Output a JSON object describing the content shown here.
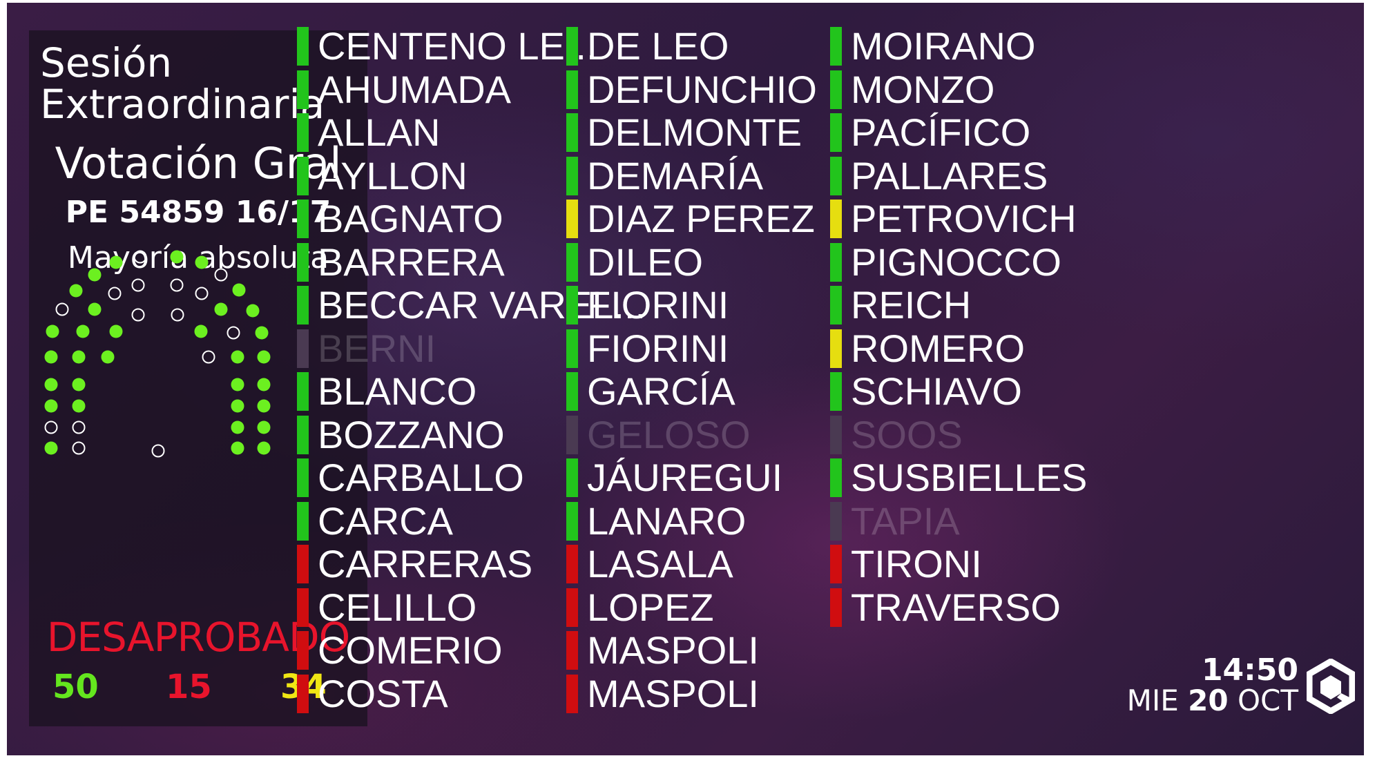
{
  "panel": {
    "session_line1": "Sesión",
    "session_line2": "Extraordinaria",
    "vote_type": "Votación Gral",
    "file": "PE 54859 16/17",
    "majority": "Mayoría absoluta",
    "result": "DESAPROBADO",
    "result_color": "#e8142c",
    "tally": {
      "yes": "50",
      "no": "15",
      "abstain": "34"
    }
  },
  "status_colors": {
    "yes": "#22c41c",
    "no": "#d00d10",
    "abstain": "#e6de10",
    "absent": "#4a3a52"
  },
  "hemicycle_seat_color": {
    "voted": "#6cf020",
    "empty": "#ffffff"
  },
  "columns": [
    [
      {
        "name": "CENTENO LE...",
        "vote": "yes"
      },
      {
        "name": "AHUMADA",
        "vote": "yes"
      },
      {
        "name": "ALLAN",
        "vote": "yes"
      },
      {
        "name": "AYLLON",
        "vote": "yes"
      },
      {
        "name": "BAGNATO",
        "vote": "yes"
      },
      {
        "name": "BARRERA",
        "vote": "yes"
      },
      {
        "name": "BECCAR VAREL...",
        "vote": "yes"
      },
      {
        "name": "BERNI",
        "vote": "absent"
      },
      {
        "name": "BLANCO",
        "vote": "yes"
      },
      {
        "name": "BOZZANO",
        "vote": "yes"
      },
      {
        "name": "CARBALLO",
        "vote": "yes"
      },
      {
        "name": "CARCA",
        "vote": "yes"
      },
      {
        "name": "CARRERAS",
        "vote": "no"
      },
      {
        "name": "CELILLO",
        "vote": "no"
      },
      {
        "name": "COMERIO",
        "vote": "no"
      },
      {
        "name": "COSTA",
        "vote": "no"
      }
    ],
    [
      {
        "name": "DE LEO",
        "vote": "yes"
      },
      {
        "name": "DEFUNCHIO",
        "vote": "yes"
      },
      {
        "name": "DELMONTE",
        "vote": "yes"
      },
      {
        "name": "DEMARÍA",
        "vote": "yes"
      },
      {
        "name": "DIAZ PEREZ",
        "vote": "abstain"
      },
      {
        "name": "DILEO",
        "vote": "yes"
      },
      {
        "name": "FIORINI",
        "vote": "yes"
      },
      {
        "name": "FIORINI",
        "vote": "yes"
      },
      {
        "name": "GARCÍA",
        "vote": "yes"
      },
      {
        "name": "GELOSO",
        "vote": "absent"
      },
      {
        "name": "JÁUREGUI",
        "vote": "yes"
      },
      {
        "name": "LANARO",
        "vote": "yes"
      },
      {
        "name": "LASALA",
        "vote": "no"
      },
      {
        "name": "LOPEZ",
        "vote": "no"
      },
      {
        "name": "MASPOLI",
        "vote": "no"
      },
      {
        "name": "MASPOLI",
        "vote": "no"
      }
    ],
    [
      {
        "name": "MOIRANO",
        "vote": "yes"
      },
      {
        "name": "MONZO",
        "vote": "yes"
      },
      {
        "name": "PACÍFICO",
        "vote": "yes"
      },
      {
        "name": "PALLARES",
        "vote": "yes"
      },
      {
        "name": "PETROVICH",
        "vote": "abstain"
      },
      {
        "name": "PIGNOCCO",
        "vote": "yes"
      },
      {
        "name": "REICH",
        "vote": "yes"
      },
      {
        "name": "ROMERO",
        "vote": "abstain"
      },
      {
        "name": "SCHIAVO",
        "vote": "yes"
      },
      {
        "name": "SOOS",
        "vote": "absent"
      },
      {
        "name": "SUSBIELLES",
        "vote": "yes"
      },
      {
        "name": "TAPIA",
        "vote": "absent"
      },
      {
        "name": "TIRONI",
        "vote": "no"
      },
      {
        "name": "TRAVERSO",
        "vote": "no"
      }
    ]
  ],
  "clock": {
    "time": "14:50",
    "weekday": "MIE",
    "day": "20",
    "month": "OCT"
  },
  "logo": "cube-logo-icon"
}
